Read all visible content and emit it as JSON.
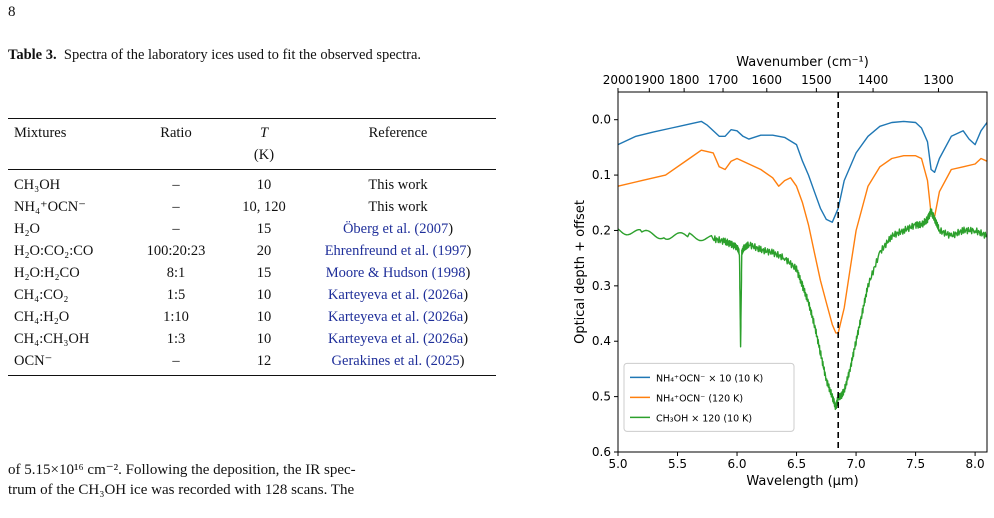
{
  "page_number": "8",
  "caption": {
    "label": "Table 3.",
    "text": "Spectra of the laboratory ices used to fit the observed spectra."
  },
  "table": {
    "headers": {
      "mixtures": "Mixtures",
      "ratio": "Ratio",
      "t": "T",
      "t_unit": "(K)",
      "reference": "Reference"
    },
    "rows": [
      {
        "mix": "CH₃OH",
        "ratio": "–",
        "t": "10",
        "ref": "This work",
        "ref_year": ""
      },
      {
        "mix": "NH₄⁺OCN⁻",
        "ratio": "–",
        "t": "10, 120",
        "ref": "This work",
        "ref_year": ""
      },
      {
        "mix": "H₂O",
        "ratio": "–",
        "t": "15",
        "ref": "Öberg et al. (",
        "ref_year": "2007"
      },
      {
        "mix": "H₂O:CO₂:CO",
        "ratio": "100:20:23",
        "t": "20",
        "ref": "Ehrenfreund et al. (",
        "ref_year": "1997"
      },
      {
        "mix": "H₂O:H₂CO",
        "ratio": "8:1",
        "t": "15",
        "ref": "Moore & Hudson (",
        "ref_year": "1998"
      },
      {
        "mix": "CH₄:CO₂",
        "ratio": "1:5",
        "t": "10",
        "ref": "Karteyeva et al. (",
        "ref_year": "2026a"
      },
      {
        "mix": "CH₄:H₂O",
        "ratio": "1:10",
        "t": "10",
        "ref": "Karteyeva et al. (",
        "ref_year": "2026a"
      },
      {
        "mix": "CH₄:CH₃OH",
        "ratio": "1:3",
        "t": "10",
        "ref": "Karteyeva et al. (",
        "ref_year": "2026a"
      },
      {
        "mix": "OCN⁻",
        "ratio": "–",
        "t": "12",
        "ref": "Gerakines et al. (",
        "ref_year": "2025"
      }
    ]
  },
  "body_text": {
    "line1": "of 5.15×10¹⁶ cm⁻². Following the deposition, the IR spec-",
    "line2": "trum of the CH₃OH ice was recorded with 128 scans. The"
  },
  "chart_data": {
    "type": "line",
    "xlabel": "Wavelength (μm)",
    "top_xlabel": "Wavenumber (cm⁻¹)",
    "ylabel": "Optical depth + offset",
    "xlim": [
      5.0,
      8.1
    ],
    "ylim": [
      0.6,
      -0.05
    ],
    "x_ticks": [
      "5.0",
      "5.5",
      "6.0",
      "6.5",
      "7.0",
      "7.5",
      "8.0"
    ],
    "y_ticks": [
      "0.0",
      "0.1",
      "0.2",
      "0.3",
      "0.4",
      "0.5",
      "0.6"
    ],
    "top_ticks": [
      {
        "label": "2000",
        "wn": 2000
      },
      {
        "label": "1900",
        "wn": 1900
      },
      {
        "label": "1800",
        "wn": 1800
      },
      {
        "label": "1700",
        "wn": 1700
      },
      {
        "label": "1600",
        "wn": 1600
      },
      {
        "label": "1500",
        "wn": 1500
      },
      {
        "label": "1400",
        "wn": 1400
      },
      {
        "label": "1300",
        "wn": 1300
      }
    ],
    "vline_x": 6.85,
    "legend_position": "lower-left",
    "series": [
      {
        "name": "NH₄⁺OCN⁻ × 10 (10 K)",
        "color": "#1f77b4",
        "x": [
          5.0,
          5.15,
          5.3,
          5.45,
          5.6,
          5.7,
          5.75,
          5.85,
          5.9,
          5.95,
          6.0,
          6.05,
          6.1,
          6.2,
          6.3,
          6.4,
          6.5,
          6.55,
          6.6,
          6.65,
          6.7,
          6.75,
          6.8,
          6.85,
          6.9,
          7.0,
          7.1,
          7.2,
          7.3,
          7.4,
          7.5,
          7.55,
          7.6,
          7.63,
          7.66,
          7.7,
          7.8,
          7.9,
          7.95,
          8.0,
          8.05,
          8.1
        ],
        "y": [
          0.045,
          0.03,
          0.022,
          0.015,
          0.008,
          0.003,
          0.01,
          0.03,
          0.03,
          0.018,
          0.02,
          0.03,
          0.035,
          0.028,
          0.028,
          0.032,
          0.045,
          0.075,
          0.1,
          0.13,
          0.16,
          0.18,
          0.185,
          0.16,
          0.11,
          0.06,
          0.03,
          0.012,
          0.005,
          0.003,
          0.005,
          0.015,
          0.04,
          0.09,
          0.095,
          0.07,
          0.03,
          0.02,
          0.035,
          0.045,
          0.02,
          0.005
        ]
      },
      {
        "name": "NH₄⁺OCN⁻ (120 K)",
        "color": "#ff7f0e",
        "x": [
          5.0,
          5.2,
          5.4,
          5.6,
          5.7,
          5.8,
          5.85,
          5.9,
          5.95,
          6.0,
          6.1,
          6.2,
          6.3,
          6.35,
          6.4,
          6.45,
          6.5,
          6.55,
          6.6,
          6.65,
          6.7,
          6.75,
          6.8,
          6.83,
          6.85,
          6.9,
          6.95,
          7.0,
          7.1,
          7.2,
          7.3,
          7.4,
          7.5,
          7.55,
          7.6,
          7.63,
          7.66,
          7.7,
          7.8,
          7.9,
          8.0,
          8.05,
          8.1
        ],
        "y": [
          0.12,
          0.11,
          0.1,
          0.07,
          0.055,
          0.06,
          0.085,
          0.09,
          0.075,
          0.07,
          0.08,
          0.09,
          0.105,
          0.12,
          0.11,
          0.105,
          0.12,
          0.15,
          0.19,
          0.24,
          0.29,
          0.33,
          0.37,
          0.385,
          0.385,
          0.34,
          0.27,
          0.2,
          0.12,
          0.085,
          0.07,
          0.065,
          0.065,
          0.07,
          0.11,
          0.17,
          0.175,
          0.13,
          0.09,
          0.085,
          0.08,
          0.07,
          0.075
        ]
      },
      {
        "name": "CH₃OH × 120 (10 K)",
        "color": "#2ca02c",
        "x": [
          5.0,
          5.2,
          5.4,
          5.6,
          5.8,
          5.9,
          5.95,
          6.0,
          6.02,
          6.03,
          6.04,
          6.06,
          6.1,
          6.2,
          6.3,
          6.4,
          6.5,
          6.55,
          6.6,
          6.65,
          6.7,
          6.75,
          6.8,
          6.83,
          6.85,
          6.87,
          6.9,
          6.95,
          7.0,
          7.05,
          7.1,
          7.2,
          7.3,
          7.4,
          7.5,
          7.55,
          7.6,
          7.63,
          7.66,
          7.7,
          7.8,
          7.9,
          8.0,
          8.1
        ],
        "y": [
          0.2,
          0.205,
          0.21,
          0.21,
          0.215,
          0.22,
          0.225,
          0.23,
          0.24,
          0.41,
          0.24,
          0.23,
          0.225,
          0.235,
          0.24,
          0.25,
          0.27,
          0.3,
          0.33,
          0.37,
          0.42,
          0.47,
          0.5,
          0.52,
          0.5,
          0.5,
          0.49,
          0.45,
          0.4,
          0.35,
          0.3,
          0.24,
          0.21,
          0.2,
          0.19,
          0.19,
          0.18,
          0.165,
          0.18,
          0.2,
          0.21,
          0.2,
          0.2,
          0.21
        ]
      }
    ]
  }
}
